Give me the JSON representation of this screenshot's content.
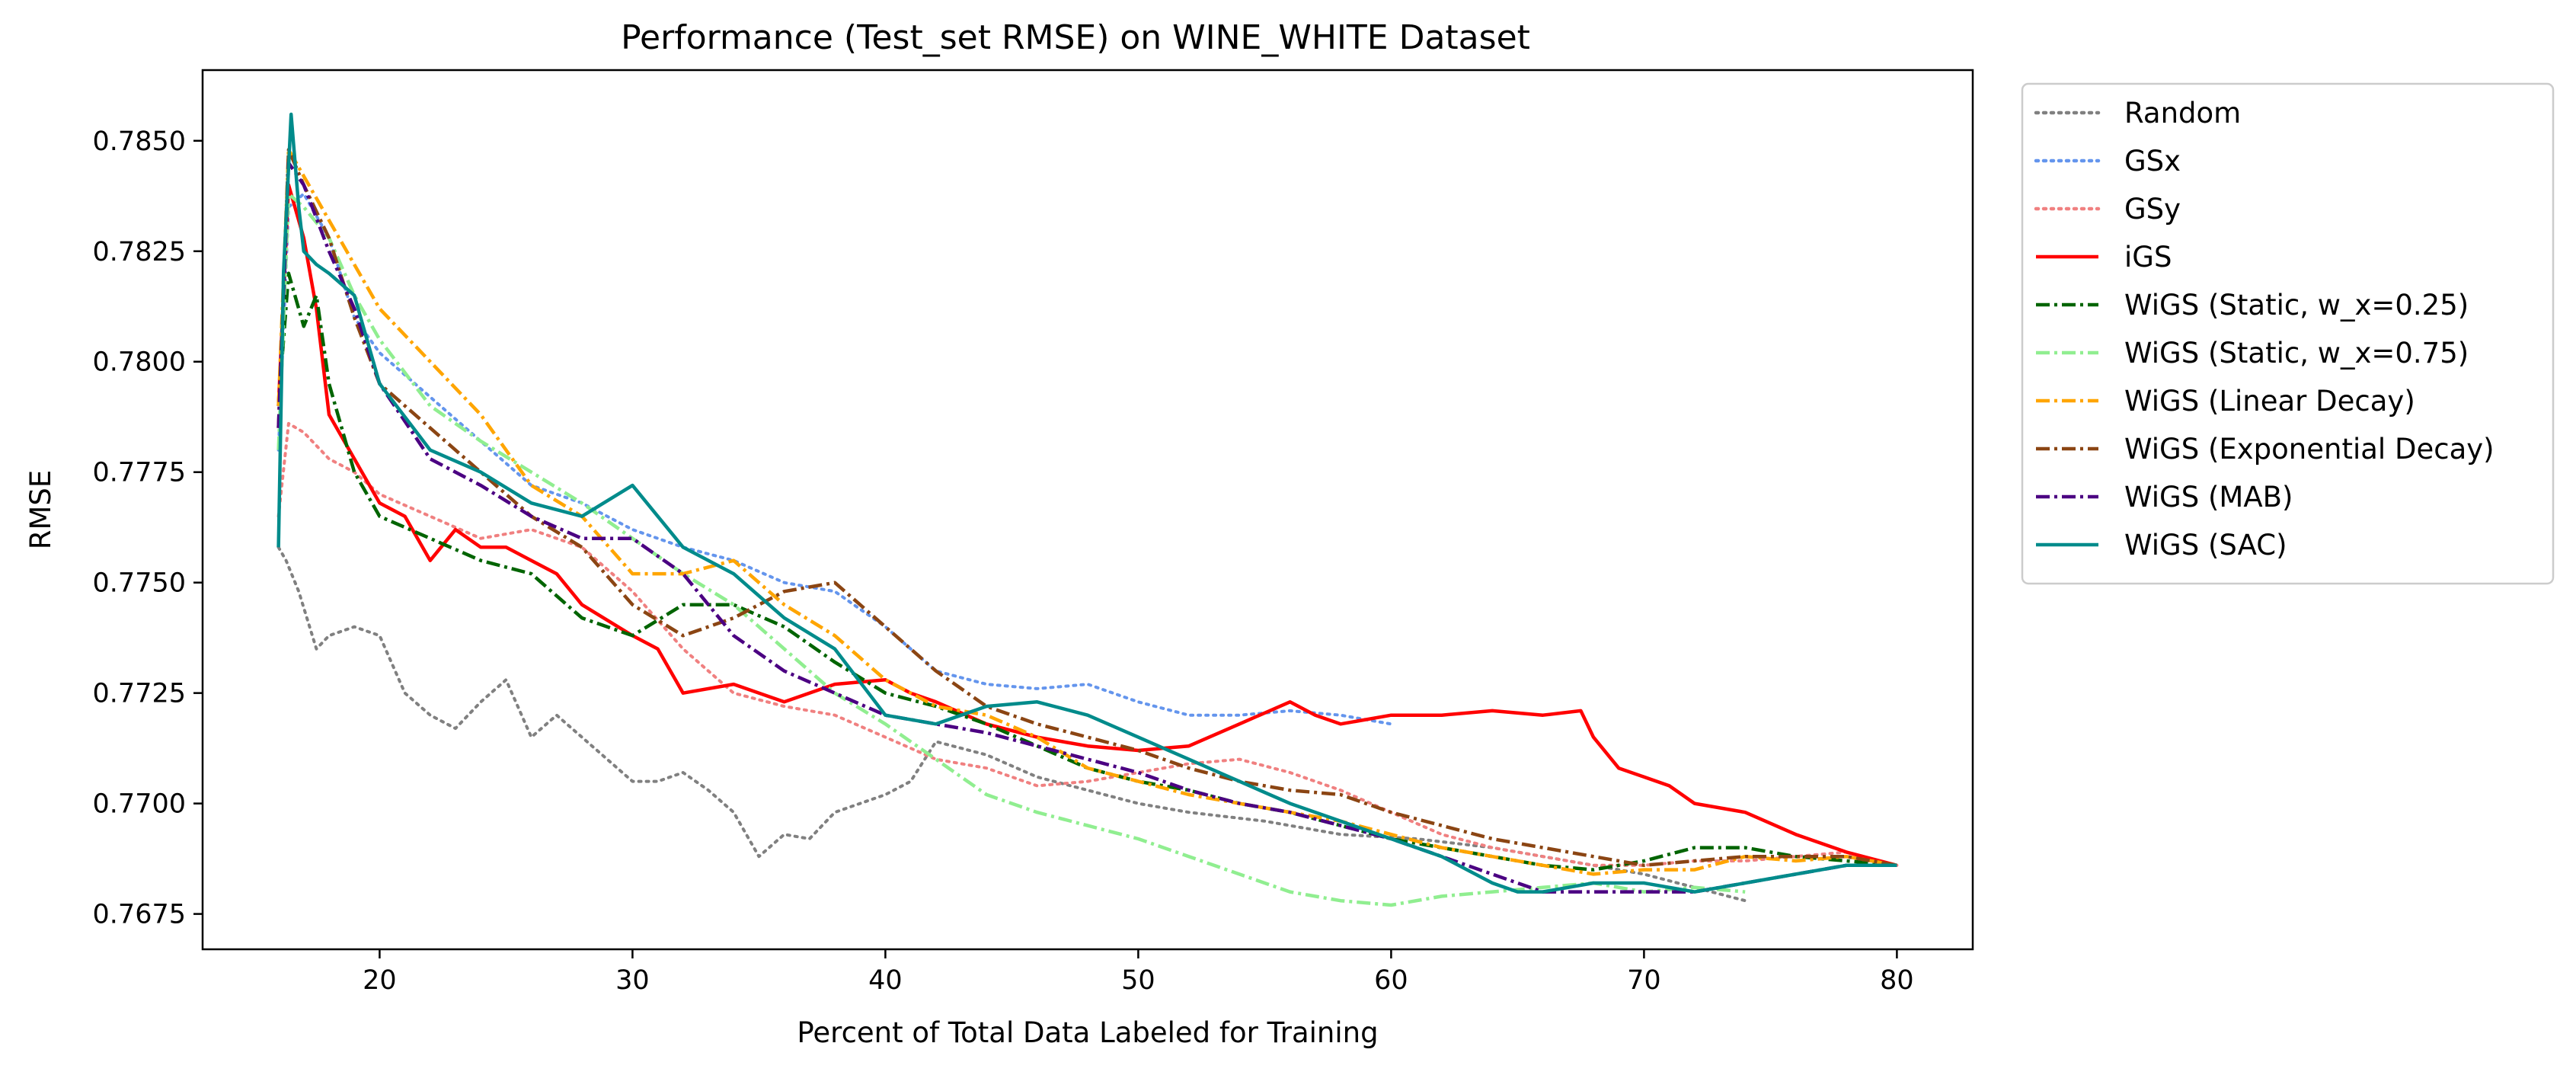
{
  "chart_data": {
    "type": "line",
    "title": "Performance (Test_set RMSE) on WINE_WHITE Dataset",
    "xlabel": "Percent of Total Data Labeled for Training",
    "ylabel": "RMSE",
    "xlim": [
      13,
      83
    ],
    "ylim": [
      0.7667,
      0.7866
    ],
    "xticks": [
      20,
      30,
      40,
      50,
      60,
      70,
      80
    ],
    "xtick_labels": [
      "20",
      "30",
      "40",
      "50",
      "60",
      "70",
      "80"
    ],
    "yticks": [
      0.7675,
      0.77,
      0.7725,
      0.775,
      0.7775,
      0.78,
      0.7825,
      0.785
    ],
    "ytick_labels": [
      "0.7675",
      "0.7700",
      "0.7725",
      "0.7750",
      "0.7775",
      "0.7800",
      "0.7825",
      "0.7850"
    ],
    "grid": false,
    "legend_position": "outside-right-top",
    "series": [
      {
        "name": "Random",
        "color": "#808080",
        "dash": "dotted",
        "x": [
          16,
          16.3,
          16.8,
          17.5,
          18,
          19,
          20,
          21,
          22,
          23,
          24,
          25,
          26,
          27,
          28,
          29,
          30,
          31,
          32,
          33,
          34,
          35,
          36,
          37,
          38,
          39,
          40,
          41,
          42,
          44,
          46,
          48,
          50,
          52,
          55,
          58,
          61,
          64,
          67,
          70,
          72,
          74
        ],
        "y": [
          0.7758,
          0.7755,
          0.7748,
          0.7735,
          0.7738,
          0.774,
          0.7738,
          0.7725,
          0.772,
          0.7717,
          0.7723,
          0.7728,
          0.7715,
          0.772,
          0.7715,
          0.771,
          0.7705,
          0.7705,
          0.7707,
          0.7703,
          0.7698,
          0.7688,
          0.7693,
          0.7692,
          0.7698,
          0.77,
          0.7702,
          0.7705,
          0.7714,
          0.7711,
          0.7706,
          0.7703,
          0.77,
          0.7698,
          0.7696,
          0.7693,
          0.7692,
          0.769,
          0.7687,
          0.7684,
          0.7681,
          0.7678
        ]
      },
      {
        "name": "GSx",
        "color": "#6495ED",
        "dash": "dotted",
        "x": [
          16,
          16.4,
          17,
          18,
          19,
          20,
          22,
          24,
          26,
          28,
          30,
          32,
          34,
          36,
          38,
          40,
          42,
          44,
          46,
          48,
          50,
          52,
          54,
          56,
          58,
          60
        ],
        "y": [
          0.778,
          0.7835,
          0.7838,
          0.7828,
          0.781,
          0.7802,
          0.7792,
          0.7782,
          0.7772,
          0.7768,
          0.7762,
          0.7758,
          0.7755,
          0.775,
          0.7748,
          0.774,
          0.773,
          0.7727,
          0.7726,
          0.7727,
          0.7723,
          0.772,
          0.772,
          0.7721,
          0.772,
          0.7718
        ]
      },
      {
        "name": "GSy",
        "color": "#F08080",
        "dash": "dotted",
        "x": [
          16,
          16.4,
          17,
          18,
          19,
          20,
          22,
          24,
          26,
          28,
          30,
          32,
          34,
          36,
          38,
          40,
          42,
          44,
          46,
          48,
          50,
          52,
          54,
          56,
          58,
          60,
          62,
          64,
          66,
          68,
          70,
          72,
          74,
          76,
          78,
          80
        ],
        "y": [
          0.7765,
          0.7786,
          0.7784,
          0.7778,
          0.7775,
          0.777,
          0.7765,
          0.776,
          0.7762,
          0.7758,
          0.7748,
          0.7735,
          0.7725,
          0.7722,
          0.772,
          0.7715,
          0.771,
          0.7708,
          0.7704,
          0.7705,
          0.7707,
          0.7709,
          0.771,
          0.7707,
          0.7703,
          0.7698,
          0.7693,
          0.769,
          0.7688,
          0.7686,
          0.7686,
          0.7687,
          0.7687,
          0.7688,
          0.7689,
          0.7686
        ]
      },
      {
        "name": "iGS",
        "color": "#FF0000",
        "dash": "solid",
        "x": [
          16,
          16.4,
          17,
          17.5,
          18,
          19,
          20,
          21,
          22,
          23,
          24,
          25,
          26,
          27,
          28,
          30,
          31,
          32,
          34,
          36,
          38,
          40,
          41,
          42,
          44,
          46,
          48,
          50,
          52,
          54,
          56,
          57,
          58,
          60,
          62,
          64,
          66,
          67.5,
          68,
          69,
          70,
          71,
          72,
          74,
          76,
          78,
          80
        ],
        "y": [
          0.779,
          0.784,
          0.7828,
          0.7812,
          0.7788,
          0.7778,
          0.7768,
          0.7765,
          0.7755,
          0.7762,
          0.7758,
          0.7758,
          0.7755,
          0.7752,
          0.7745,
          0.7738,
          0.7735,
          0.7725,
          0.7727,
          0.7723,
          0.7727,
          0.7728,
          0.7725,
          0.7723,
          0.7718,
          0.7715,
          0.7713,
          0.7712,
          0.7713,
          0.7718,
          0.7723,
          0.772,
          0.7718,
          0.772,
          0.772,
          0.7721,
          0.772,
          0.7721,
          0.7715,
          0.7708,
          0.7706,
          0.7704,
          0.77,
          0.7698,
          0.7693,
          0.7689,
          0.7686
        ]
      },
      {
        "name": "WiGS (Static, w_x=0.25)",
        "color": "#006400",
        "dash": "dashdot",
        "x": [
          16,
          16.4,
          17,
          17.5,
          18,
          19,
          20,
          22,
          24,
          26,
          28,
          30,
          32,
          34,
          36,
          38,
          40,
          42,
          44,
          46,
          48,
          50,
          52,
          54,
          56,
          58,
          60,
          62,
          64,
          66,
          68,
          70,
          72,
          74,
          76,
          78,
          80
        ],
        "y": [
          0.779,
          0.782,
          0.7808,
          0.7815,
          0.7795,
          0.7775,
          0.7765,
          0.776,
          0.7755,
          0.7752,
          0.7742,
          0.7738,
          0.7745,
          0.7745,
          0.774,
          0.7732,
          0.7725,
          0.7722,
          0.7718,
          0.7713,
          0.7708,
          0.7705,
          0.7703,
          0.77,
          0.7698,
          0.7695,
          0.7692,
          0.769,
          0.7688,
          0.7686,
          0.7685,
          0.7687,
          0.769,
          0.769,
          0.7688,
          0.7687,
          0.7686
        ]
      },
      {
        "name": "WiGS (Static, w_x=0.75)",
        "color": "#90EE90",
        "dash": "dashdot",
        "x": [
          16,
          16.4,
          17,
          18,
          19,
          20,
          22,
          24,
          26,
          28,
          30,
          32,
          34,
          36,
          38,
          40,
          42,
          44,
          46,
          48,
          50,
          52,
          54,
          56,
          58,
          60,
          62,
          64,
          66,
          68,
          70,
          72,
          74
        ],
        "y": [
          0.778,
          0.7838,
          0.7835,
          0.7828,
          0.7815,
          0.7805,
          0.779,
          0.7782,
          0.7775,
          0.7768,
          0.776,
          0.7752,
          0.7745,
          0.7735,
          0.7725,
          0.7718,
          0.771,
          0.7702,
          0.7698,
          0.7695,
          0.7692,
          0.7688,
          0.7684,
          0.768,
          0.7678,
          0.7677,
          0.7679,
          0.768,
          0.7681,
          0.7682,
          0.768,
          0.7681,
          0.768
        ]
      },
      {
        "name": "WiGS (Linear Decay)",
        "color": "#FFA500",
        "dash": "dashdot",
        "x": [
          16,
          16.4,
          17,
          18,
          19,
          20,
          22,
          24,
          26,
          28,
          30,
          32,
          34,
          36,
          38,
          40,
          42,
          44,
          46,
          48,
          50,
          52,
          54,
          56,
          58,
          60,
          62,
          64,
          66,
          68,
          70,
          72,
          74,
          76,
          78,
          80
        ],
        "y": [
          0.779,
          0.7848,
          0.7842,
          0.7832,
          0.7822,
          0.7812,
          0.78,
          0.7788,
          0.7772,
          0.7765,
          0.7752,
          0.7752,
          0.7755,
          0.7745,
          0.7738,
          0.7728,
          0.7722,
          0.772,
          0.7715,
          0.7708,
          0.7705,
          0.7702,
          0.77,
          0.7698,
          0.7696,
          0.7693,
          0.769,
          0.7688,
          0.7686,
          0.7684,
          0.7685,
          0.7685,
          0.7688,
          0.7687,
          0.7688,
          0.7686
        ]
      },
      {
        "name": "WiGS (Exponential Decay)",
        "color": "#8B4513",
        "dash": "dashdot",
        "x": [
          16,
          16.4,
          17,
          18,
          19,
          20,
          22,
          24,
          26,
          28,
          30,
          32,
          34,
          36,
          38,
          40,
          42,
          44,
          46,
          48,
          50,
          52,
          54,
          56,
          58,
          60,
          62,
          64,
          66,
          68,
          70,
          72,
          74,
          76,
          78,
          80
        ],
        "y": [
          0.7785,
          0.7848,
          0.784,
          0.7828,
          0.781,
          0.7795,
          0.7785,
          0.7775,
          0.7765,
          0.7758,
          0.7745,
          0.7738,
          0.7742,
          0.7748,
          0.775,
          0.774,
          0.773,
          0.7722,
          0.7718,
          0.7715,
          0.7712,
          0.7708,
          0.7705,
          0.7703,
          0.7702,
          0.7698,
          0.7695,
          0.7692,
          0.769,
          0.7688,
          0.7686,
          0.7687,
          0.7688,
          0.7688,
          0.7688,
          0.7686
        ]
      },
      {
        "name": "WiGS (MAB)",
        "color": "#4B0082",
        "dash": "dashdot",
        "x": [
          16,
          16.4,
          17,
          18,
          19,
          20,
          22,
          24,
          26,
          28,
          30,
          32,
          34,
          36,
          38,
          40,
          42,
          44,
          46,
          48,
          50,
          52,
          54,
          56,
          58,
          60,
          62,
          64,
          66,
          68,
          70,
          72,
          74,
          76,
          78,
          80
        ],
        "y": [
          0.7785,
          0.7845,
          0.784,
          0.7825,
          0.7812,
          0.7795,
          0.7778,
          0.7772,
          0.7765,
          0.776,
          0.776,
          0.7752,
          0.7738,
          0.773,
          0.7725,
          0.772,
          0.7718,
          0.7716,
          0.7713,
          0.771,
          0.7707,
          0.7703,
          0.77,
          0.7698,
          0.7695,
          0.7692,
          0.7688,
          0.7684,
          0.768,
          0.768,
          0.768,
          0.768,
          0.7682,
          0.7684,
          0.7686,
          0.7686
        ]
      },
      {
        "name": "WiGS (SAC)",
        "color": "#008B8B",
        "dash": "solid",
        "x": [
          16,
          16.2,
          16.5,
          16.8,
          17,
          17.5,
          18,
          19,
          20,
          22,
          24,
          26,
          28,
          30,
          31,
          32,
          34,
          36,
          38,
          40,
          42,
          44,
          46,
          48,
          50,
          52,
          54,
          56,
          58,
          60,
          62,
          64,
          65,
          66,
          68,
          70,
          72,
          74,
          76,
          78,
          80
        ],
        "y": [
          0.7758,
          0.782,
          0.7856,
          0.7835,
          0.7825,
          0.7822,
          0.782,
          0.7815,
          0.7795,
          0.778,
          0.7775,
          0.7768,
          0.7765,
          0.7772,
          0.7765,
          0.7758,
          0.7752,
          0.7742,
          0.7735,
          0.772,
          0.7718,
          0.7722,
          0.7723,
          0.772,
          0.7715,
          0.771,
          0.7705,
          0.77,
          0.7696,
          0.7692,
          0.7688,
          0.7682,
          0.768,
          0.768,
          0.7682,
          0.7682,
          0.768,
          0.7682,
          0.7684,
          0.7686,
          0.7686
        ]
      }
    ]
  }
}
